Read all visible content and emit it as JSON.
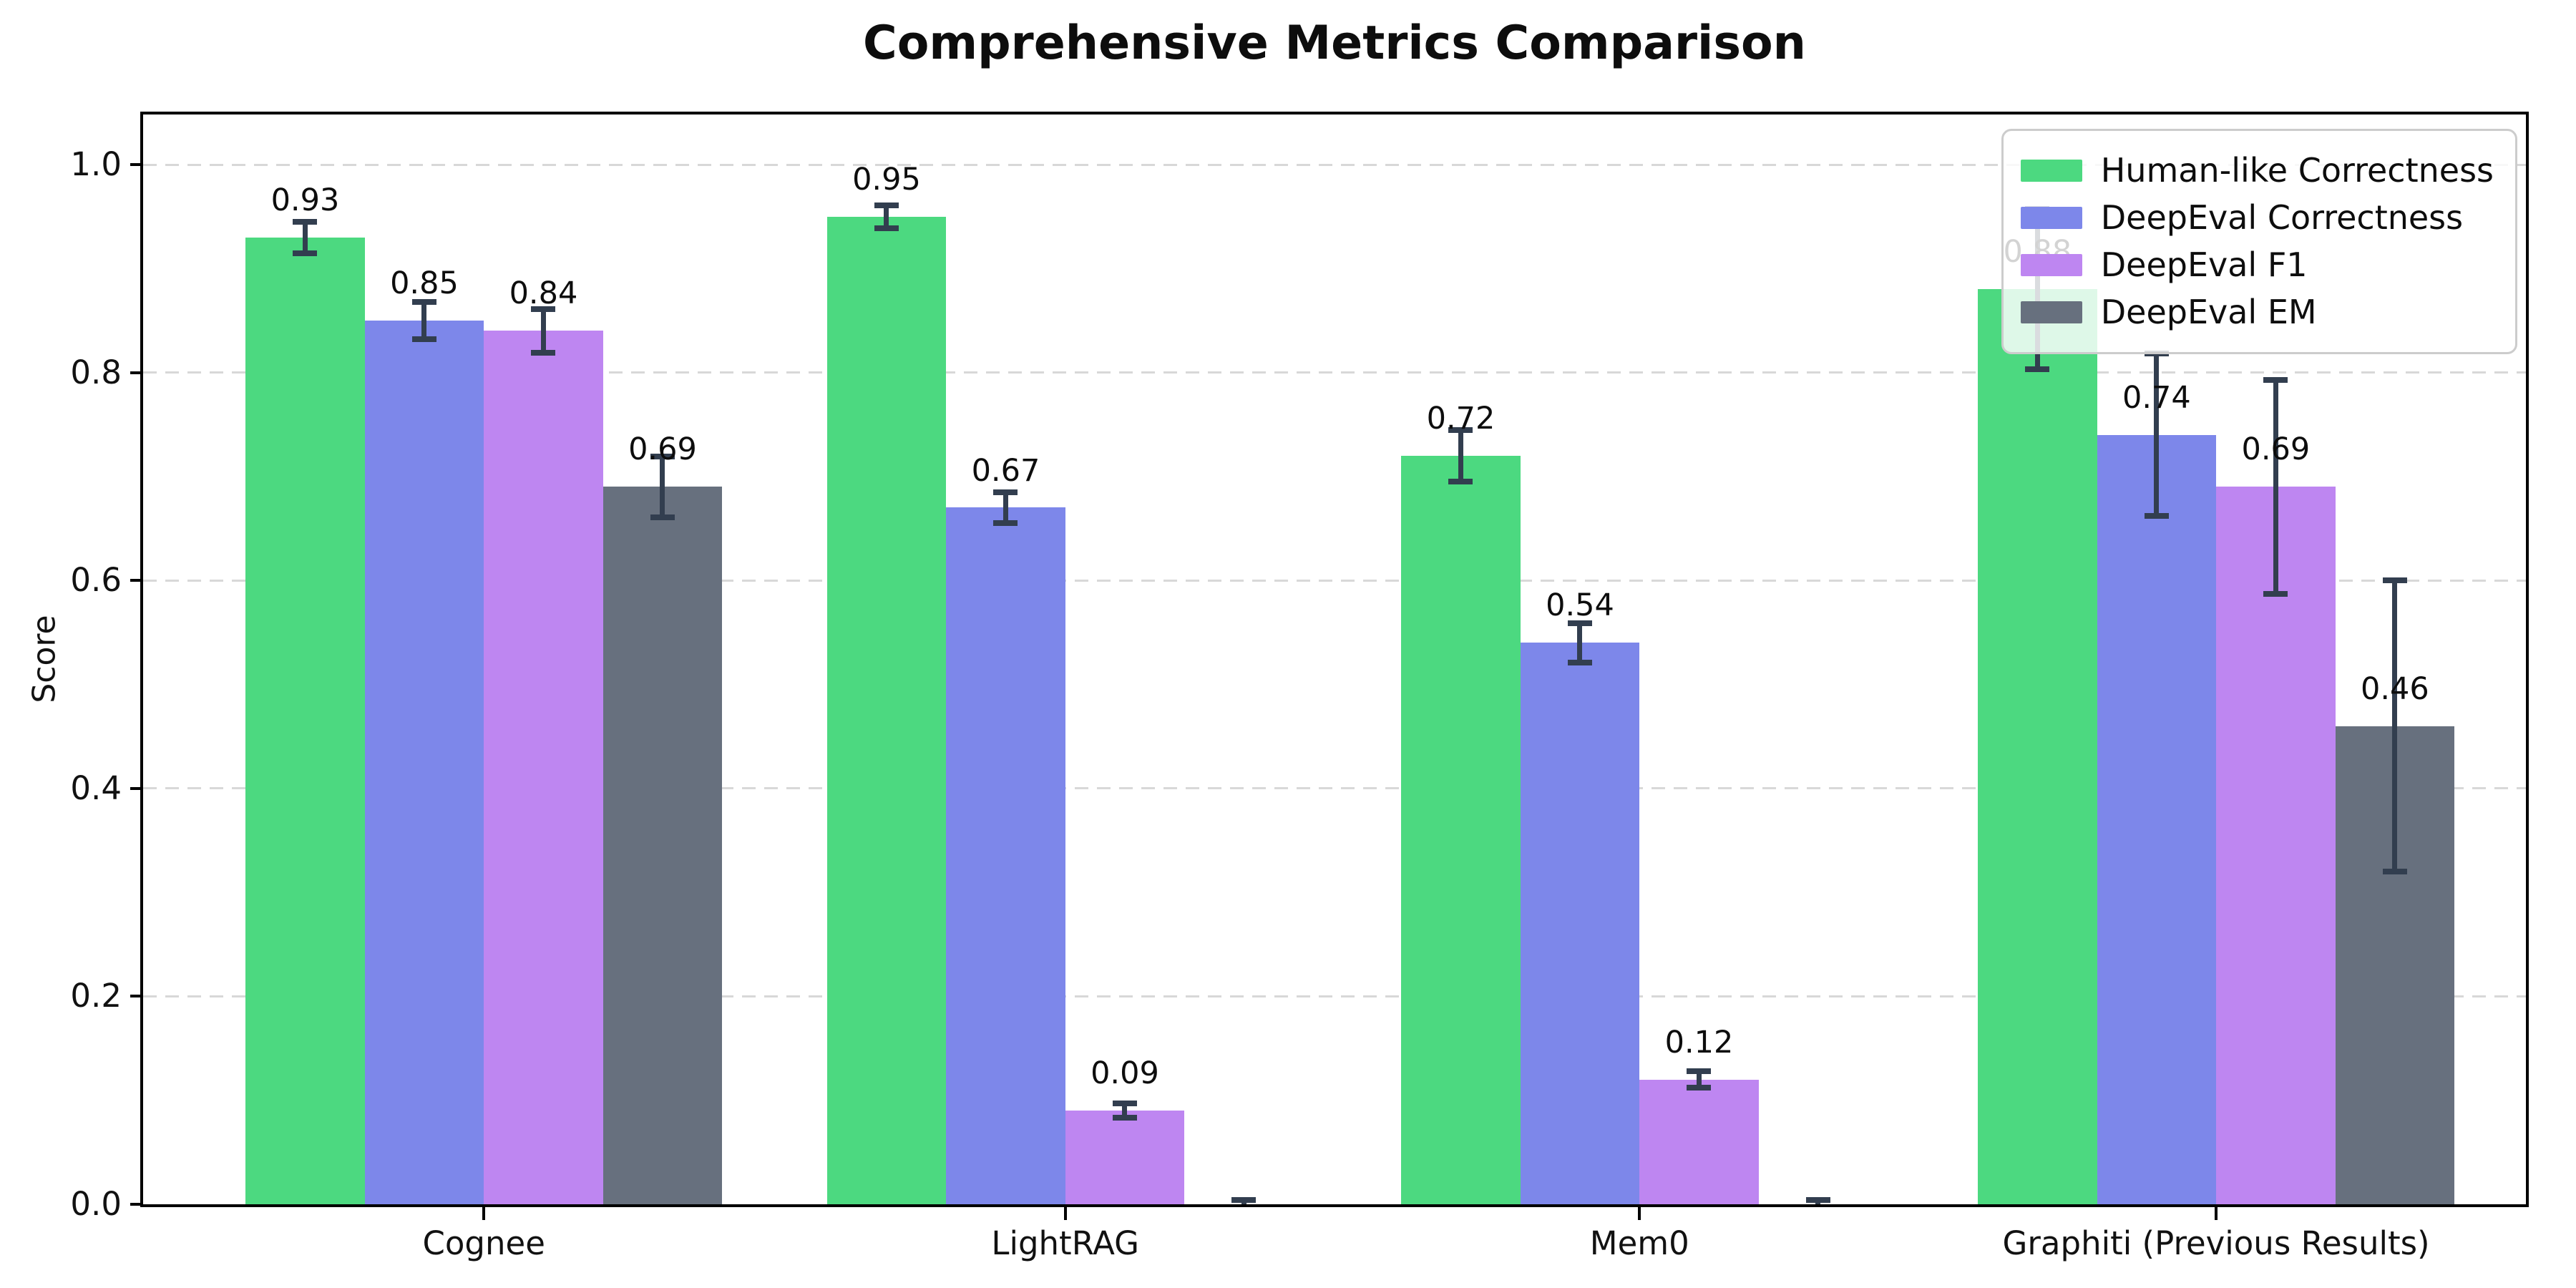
{
  "chart_data": {
    "type": "bar",
    "title": "Comprehensive Metrics Comparison",
    "ylabel": "Score",
    "categories": [
      "Cognee",
      "LightRAG",
      "Mem0",
      "Graphiti (Previous Results)"
    ],
    "series": [
      {
        "name": "Human-like Correctness",
        "color": "#4cd980",
        "values": [
          0.93,
          0.95,
          0.72,
          0.88
        ],
        "errors": [
          0.015,
          0.011,
          0.025,
          0.077
        ],
        "labels": [
          "0.93",
          "0.95",
          "0.72",
          "0.88"
        ]
      },
      {
        "name": "DeepEval Correctness",
        "color": "#7d87ea",
        "values": [
          0.85,
          0.67,
          0.54,
          0.74
        ],
        "errors": [
          0.018,
          0.015,
          0.019,
          0.078
        ],
        "labels": [
          "0.85",
          "0.67",
          "0.54",
          "0.74"
        ]
      },
      {
        "name": "DeepEval F1",
        "color": "#be86f1",
        "values": [
          0.84,
          0.09,
          0.12,
          0.69
        ],
        "errors": [
          0.021,
          0.007,
          0.008,
          0.103
        ],
        "labels": [
          "0.84",
          "0.09",
          "0.12",
          "0.69"
        ]
      },
      {
        "name": "DeepEval EM",
        "color": "#67707e",
        "values": [
          0.69,
          0.0,
          0.0,
          0.46
        ],
        "errors": [
          0.029,
          0.004,
          0.004,
          0.14
        ],
        "labels": [
          "0.69",
          "",
          "",
          "0.46"
        ]
      }
    ],
    "ylim": [
      0.0,
      1.048
    ],
    "yticks": [
      0.0,
      0.2,
      0.4,
      0.6,
      0.8,
      1.0
    ],
    "ytick_labels": [
      "0.0",
      "0.2",
      "0.4",
      "0.6",
      "0.8",
      "1.0"
    ],
    "grid": "horizontal-dashed",
    "legend_position": "upper right",
    "style": {
      "error_bar_color": "#323e4f",
      "grid_color": "#d8d8d8",
      "spine_color": "#000000",
      "text_color": "#111111",
      "legend_border_color": "#cccccc",
      "background": "#ffffff"
    }
  }
}
